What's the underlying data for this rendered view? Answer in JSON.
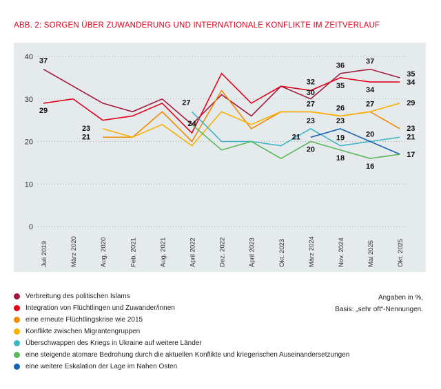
{
  "title": "ABB. 2: SORGEN ÜBER ZUWANDERUNG UND INTERNATIONALE KONFLIKTE IM ZEITVERLAUF",
  "note": [
    "Angaben in %,",
    "Basis: „sehr oft“-Nennungen."
  ],
  "chart_data": {
    "type": "line",
    "title": "ABB. 2: SORGEN ÜBER ZUWANDERUNG UND INTERNATIONALE KONFLIKTE IM ZEITVERLAUF",
    "categories": [
      "Juli 2019",
      "März 2020",
      "Aug. 2020",
      "Feb. 2021",
      "Aug. 2021",
      "April 2022",
      "Dez. 2022",
      "April 2023",
      "Okt. 2023",
      "März 2024",
      "Nov. 2024",
      "Mai 2025",
      "Okt. 2025"
    ],
    "ylim": [
      0,
      40
    ],
    "yticks": [
      0,
      10,
      20,
      30,
      40
    ],
    "grid": true,
    "legend": "bottom",
    "series": [
      {
        "name": "Verbreitung des politischen Islams",
        "color": "#a31a3c",
        "values": [
          37,
          33,
          29,
          27,
          30,
          24,
          31,
          26,
          33,
          30,
          36,
          37,
          35
        ]
      },
      {
        "name": "Integration von Flüchtlingen und Zuwander/innen",
        "color": "#e3001b",
        "values": [
          29,
          30,
          25,
          26,
          29,
          22,
          36,
          29,
          33,
          32,
          35,
          34,
          34
        ]
      },
      {
        "name": "eine erneute Flüchtlingskrise wie 2015",
        "color": "#f08a00",
        "values": [
          null,
          null,
          21,
          21,
          27,
          20,
          32,
          23,
          27,
          27,
          26,
          27,
          23
        ]
      },
      {
        "name": "Konflikte zwischen Migrantengruppen",
        "color": "#f9b000",
        "values": [
          null,
          null,
          23,
          21,
          24,
          19,
          27,
          24,
          27,
          27,
          26,
          27,
          29
        ]
      },
      {
        "name": "Überschwappen des Kriegs in Ukraine auf weitere Länder",
        "color": "#3fb4c5",
        "values": [
          null,
          null,
          null,
          null,
          null,
          27,
          20,
          20,
          19,
          23,
          19,
          20,
          21
        ]
      },
      {
        "name": "eine steigende atomare Bedrohung durch die aktuellen Konflikte und kriegerischen Auseinandersetzungen",
        "color": "#5cb85c",
        "values": [
          null,
          null,
          null,
          null,
          null,
          24,
          18,
          20,
          16,
          20,
          18,
          16,
          17
        ]
      },
      {
        "name": "eine weitere Eskalation der Lage im Nahen Osten",
        "color": "#1a63b0",
        "values": [
          null,
          null,
          null,
          null,
          null,
          null,
          null,
          null,
          null,
          21,
          23,
          20,
          17
        ]
      }
    ],
    "data_labels": [
      {
        "s": 0,
        "i": 0,
        "v": "37"
      },
      {
        "s": 1,
        "i": 0,
        "v": "29"
      },
      {
        "s": 3,
        "i": 2,
        "v": "23"
      },
      {
        "s": 2,
        "i": 2,
        "v": "21"
      },
      {
        "s": 4,
        "i": 5,
        "v": "27"
      },
      {
        "s": 0,
        "i": 5,
        "v": "24"
      },
      {
        "s": 1,
        "i": 9,
        "v": "32"
      },
      {
        "s": 0,
        "i": 9,
        "v": "30"
      },
      {
        "s": 3,
        "i": 9,
        "v": "27"
      },
      {
        "s": 4,
        "i": 9,
        "v": "23"
      },
      {
        "s": 6,
        "i": 9,
        "v": "21"
      },
      {
        "s": 5,
        "i": 9,
        "v": "20"
      },
      {
        "s": 0,
        "i": 10,
        "v": "36"
      },
      {
        "s": 1,
        "i": 10,
        "v": "35"
      },
      {
        "s": 3,
        "i": 10,
        "v": "26"
      },
      {
        "s": 6,
        "i": 10,
        "v": "23"
      },
      {
        "s": 4,
        "i": 10,
        "v": "19"
      },
      {
        "s": 5,
        "i": 10,
        "v": "18"
      },
      {
        "s": 0,
        "i": 11,
        "v": "37"
      },
      {
        "s": 1,
        "i": 11,
        "v": "34"
      },
      {
        "s": 3,
        "i": 11,
        "v": "27"
      },
      {
        "s": 6,
        "i": 11,
        "v": "20"
      },
      {
        "s": 5,
        "i": 11,
        "v": "16"
      },
      {
        "s": 0,
        "i": 12,
        "v": "35"
      },
      {
        "s": 1,
        "i": 12,
        "v": "34"
      },
      {
        "s": 3,
        "i": 12,
        "v": "29"
      },
      {
        "s": 2,
        "i": 12,
        "v": "23"
      },
      {
        "s": 4,
        "i": 12,
        "v": "21"
      },
      {
        "s": 6,
        "i": 12,
        "v": "17"
      }
    ]
  }
}
